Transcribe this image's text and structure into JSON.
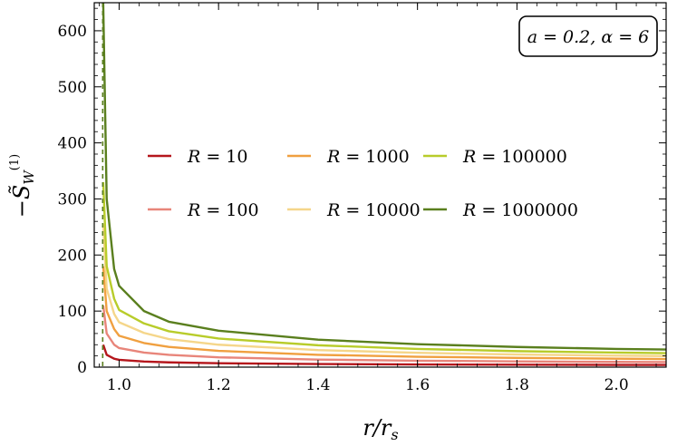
{
  "chart_data": {
    "type": "line",
    "title": "",
    "xlabel": "r/r_s",
    "ylabel": "-S̃_W^(1)",
    "xlim": [
      0.95,
      2.1
    ],
    "ylim": [
      0,
      650
    ],
    "x_ticks": [
      1.0,
      1.2,
      1.4,
      1.6,
      1.8,
      2.0
    ],
    "x_tick_labels": [
      "1.0",
      "1.2",
      "1.4",
      "1.6",
      "1.8",
      "2.0"
    ],
    "y_ticks": [
      0,
      100,
      200,
      300,
      400,
      500,
      600
    ],
    "y_tick_labels": [
      "0",
      "100",
      "200",
      "300",
      "400",
      "500",
      "600"
    ],
    "grid": false,
    "legend_placement": "center",
    "annotation": "a = 0.2, α = 6",
    "vertical_line_x": 0.967,
    "series": [
      {
        "name": "R = 10",
        "color": "#b5161c",
        "x": [
          0.968,
          0.975,
          0.99,
          1.0,
          1.05,
          1.1,
          1.2,
          1.4,
          1.6,
          1.8,
          2.0,
          2.1
        ],
        "y": [
          40,
          22,
          15,
          13,
          10,
          8.5,
          7,
          5.5,
          4.8,
          4.3,
          4,
          3.9
        ]
      },
      {
        "name": "R = 100",
        "color": "#e8857a",
        "x": [
          0.968,
          0.975,
          0.99,
          1.0,
          1.05,
          1.1,
          1.2,
          1.4,
          1.6,
          1.8,
          2.0,
          2.1
        ],
        "y": [
          110,
          60,
          40,
          34,
          26,
          22,
          17.5,
          13.5,
          11.5,
          10.2,
          9.3,
          9
        ]
      },
      {
        "name": "R = 1000",
        "color": "#f0a040",
        "x": [
          0.968,
          0.975,
          0.99,
          1.0,
          1.05,
          1.1,
          1.2,
          1.4,
          1.6,
          1.8,
          2.0,
          2.1
        ],
        "y": [
          180,
          100,
          68,
          56,
          43,
          36,
          29,
          22,
          18.5,
          16.5,
          15,
          14.5
        ]
      },
      {
        "name": "R = 10000",
        "color": "#f5d68a",
        "x": [
          0.968,
          0.975,
          0.99,
          1.0,
          1.05,
          1.1,
          1.2,
          1.4,
          1.6,
          1.8,
          2.0,
          2.1
        ],
        "y": [
          255,
          140,
          95,
          80,
          61,
          50,
          40,
          30.5,
          25.5,
          22.5,
          20.5,
          19.8
        ]
      },
      {
        "name": "R = 100000",
        "color": "#b8cc2a",
        "x": [
          0.968,
          0.975,
          0.99,
          1.0,
          1.05,
          1.1,
          1.2,
          1.4,
          1.6,
          1.8,
          2.0,
          2.1
        ],
        "y": [
          330,
          180,
          122,
          102,
          78,
          64,
          51,
          39,
          32.5,
          28.5,
          26,
          25
        ]
      },
      {
        "name": "R = 1000000",
        "color": "#5a7f1e",
        "x": [
          0.968,
          0.975,
          0.99,
          1.0,
          1.05,
          1.1,
          1.2,
          1.4,
          1.6,
          1.8,
          2.0,
          2.1
        ],
        "y": [
          650,
          300,
          175,
          145,
          100,
          81,
          65,
          49,
          41,
          36,
          32.5,
          31.5
        ]
      }
    ]
  }
}
